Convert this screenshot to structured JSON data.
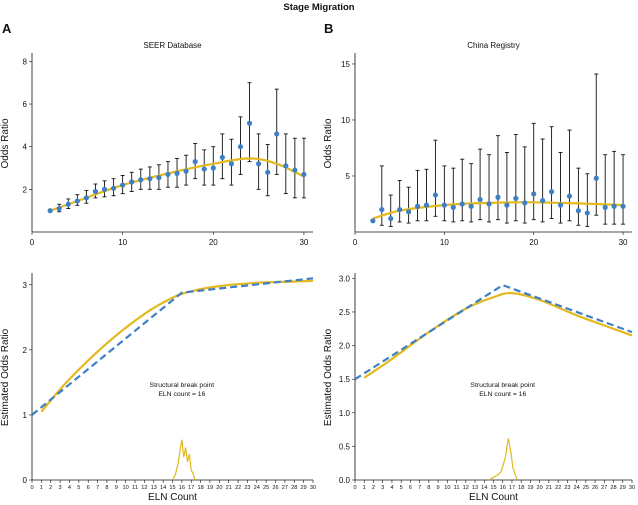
{
  "figure": {
    "title": "Stage Migration",
    "panel_a_letter": "A",
    "panel_b_letter": "B",
    "annotation_line1": "Structural break point",
    "annotation_line2": "ELN count = 16"
  },
  "colors": {
    "points": "#3f7fc6",
    "errorbars": "#111111",
    "smooth": "#e2b91f",
    "fit": "#3f7fc6",
    "observed": "#e2b91f"
  },
  "chart_data": [
    {
      "id": "a-top",
      "type": "scatter",
      "title": "SEER Database",
      "ylabel": "Odds Ratio",
      "xlim": [
        0,
        31
      ],
      "ylim": [
        0,
        8.3
      ],
      "xticks": [
        0,
        10,
        20,
        30
      ],
      "yticks": [
        2,
        4,
        6,
        8
      ],
      "points": [
        {
          "x": 2,
          "y": 1.0,
          "lo": 0.95,
          "hi": 1.05
        },
        {
          "x": 3,
          "y": 1.1,
          "lo": 0.95,
          "hi": 1.3
        },
        {
          "x": 4,
          "y": 1.3,
          "lo": 1.1,
          "hi": 1.55
        },
        {
          "x": 5,
          "y": 1.45,
          "lo": 1.25,
          "hi": 1.75
        },
        {
          "x": 6,
          "y": 1.6,
          "lo": 1.35,
          "hi": 1.95
        },
        {
          "x": 7,
          "y": 1.9,
          "lo": 1.6,
          "hi": 2.25
        },
        {
          "x": 8,
          "y": 2.0,
          "lo": 1.65,
          "hi": 2.4
        },
        {
          "x": 9,
          "y": 2.05,
          "lo": 1.7,
          "hi": 2.5
        },
        {
          "x": 10,
          "y": 2.2,
          "lo": 1.8,
          "hi": 2.65
        },
        {
          "x": 11,
          "y": 2.35,
          "lo": 1.9,
          "hi": 2.8
        },
        {
          "x": 12,
          "y": 2.45,
          "lo": 2.0,
          "hi": 2.95
        },
        {
          "x": 13,
          "y": 2.5,
          "lo": 2.0,
          "hi": 3.05
        },
        {
          "x": 14,
          "y": 2.55,
          "lo": 2.0,
          "hi": 3.15
        },
        {
          "x": 15,
          "y": 2.7,
          "lo": 2.1,
          "hi": 3.3
        },
        {
          "x": 16,
          "y": 2.75,
          "lo": 2.1,
          "hi": 3.45
        },
        {
          "x": 17,
          "y": 2.85,
          "lo": 2.2,
          "hi": 3.6
        },
        {
          "x": 18,
          "y": 3.3,
          "lo": 2.5,
          "hi": 4.15
        },
        {
          "x": 19,
          "y": 2.95,
          "lo": 2.2,
          "hi": 3.85
        },
        {
          "x": 20,
          "y": 3.0,
          "lo": 2.2,
          "hi": 4.0
        },
        {
          "x": 21,
          "y": 3.5,
          "lo": 2.5,
          "hi": 4.6
        },
        {
          "x": 22,
          "y": 3.2,
          "lo": 2.2,
          "hi": 4.35
        },
        {
          "x": 23,
          "y": 4.0,
          "lo": 2.7,
          "hi": 5.4
        },
        {
          "x": 24,
          "y": 5.1,
          "lo": 3.3,
          "hi": 7.0
        },
        {
          "x": 25,
          "y": 3.2,
          "lo": 2.0,
          "hi": 4.6
        },
        {
          "x": 26,
          "y": 2.8,
          "lo": 1.7,
          "hi": 4.1
        },
        {
          "x": 27,
          "y": 4.6,
          "lo": 2.7,
          "hi": 6.7
        },
        {
          "x": 28,
          "y": 3.1,
          "lo": 1.8,
          "hi": 4.6
        },
        {
          "x": 29,
          "y": 2.9,
          "lo": 1.6,
          "hi": 4.4
        },
        {
          "x": 30,
          "y": 2.7,
          "lo": 1.6,
          "hi": 4.4
        }
      ],
      "smooth": {
        "x": [
          2,
          5,
          10,
          15,
          20,
          24,
          27,
          30
        ],
        "y": [
          1.0,
          1.45,
          2.2,
          2.75,
          3.2,
          3.45,
          3.2,
          2.6
        ]
      }
    },
    {
      "id": "b-top",
      "type": "scatter",
      "title": "China Registry",
      "ylabel": "Odds Ratio",
      "xlim": [
        0,
        31
      ],
      "ylim": [
        0,
        15.8
      ],
      "xticks": [
        0,
        10,
        20,
        30
      ],
      "yticks": [
        5,
        10,
        15
      ],
      "points": [
        {
          "x": 2,
          "y": 1.0,
          "lo": 0.9,
          "hi": 1.1
        },
        {
          "x": 3,
          "y": 2.0,
          "lo": 0.6,
          "hi": 5.9
        },
        {
          "x": 4,
          "y": 1.2,
          "lo": 0.5,
          "hi": 3.3
        },
        {
          "x": 5,
          "y": 2.0,
          "lo": 0.9,
          "hi": 4.6
        },
        {
          "x": 6,
          "y": 1.8,
          "lo": 0.8,
          "hi": 4.0
        },
        {
          "x": 7,
          "y": 2.3,
          "lo": 1.0,
          "hi": 5.5
        },
        {
          "x": 8,
          "y": 2.4,
          "lo": 1.0,
          "hi": 5.6
        },
        {
          "x": 9,
          "y": 3.3,
          "lo": 1.4,
          "hi": 8.2
        },
        {
          "x": 10,
          "y": 2.4,
          "lo": 1.0,
          "hi": 5.9
        },
        {
          "x": 11,
          "y": 2.2,
          "lo": 0.9,
          "hi": 5.7
        },
        {
          "x": 12,
          "y": 2.5,
          "lo": 1.0,
          "hi": 6.5
        },
        {
          "x": 13,
          "y": 2.3,
          "lo": 0.9,
          "hi": 6.1
        },
        {
          "x": 14,
          "y": 2.9,
          "lo": 1.1,
          "hi": 7.4
        },
        {
          "x": 15,
          "y": 2.5,
          "lo": 0.9,
          "hi": 6.9
        },
        {
          "x": 16,
          "y": 3.1,
          "lo": 1.1,
          "hi": 8.6
        },
        {
          "x": 17,
          "y": 2.4,
          "lo": 0.8,
          "hi": 7.1
        },
        {
          "x": 18,
          "y": 3.0,
          "lo": 1.0,
          "hi": 8.7
        },
        {
          "x": 19,
          "y": 2.6,
          "lo": 0.8,
          "hi": 7.6
        },
        {
          "x": 20,
          "y": 3.4,
          "lo": 1.1,
          "hi": 9.7
        },
        {
          "x": 21,
          "y": 2.8,
          "lo": 0.9,
          "hi": 8.3
        },
        {
          "x": 22,
          "y": 3.6,
          "lo": 1.2,
          "hi": 9.4
        },
        {
          "x": 23,
          "y": 2.4,
          "lo": 0.8,
          "hi": 7.1
        },
        {
          "x": 24,
          "y": 3.2,
          "lo": 1.0,
          "hi": 9.1
        },
        {
          "x": 25,
          "y": 1.9,
          "lo": 0.6,
          "hi": 5.7
        },
        {
          "x": 26,
          "y": 1.7,
          "lo": 0.5,
          "hi": 5.2
        },
        {
          "x": 27,
          "y": 4.8,
          "lo": 1.5,
          "hi": 14.1
        },
        {
          "x": 28,
          "y": 2.2,
          "lo": 0.7,
          "hi": 6.9
        },
        {
          "x": 29,
          "y": 2.3,
          "lo": 0.7,
          "hi": 7.2
        },
        {
          "x": 30,
          "y": 2.3,
          "lo": 0.7,
          "hi": 6.9
        }
      ],
      "smooth": {
        "x": [
          2,
          5,
          10,
          15,
          20,
          25,
          30
        ],
        "y": [
          1.2,
          1.9,
          2.4,
          2.6,
          2.65,
          2.55,
          2.4
        ]
      }
    },
    {
      "id": "a-bottom",
      "type": "line",
      "xlabel": "ELN Count",
      "ylabel": "Estimated Odds Ratio",
      "xlim": [
        0,
        30
      ],
      "ylim": [
        0,
        3.15
      ],
      "xticks": [
        0,
        1,
        2,
        3,
        4,
        5,
        6,
        7,
        8,
        9,
        10,
        11,
        12,
        13,
        14,
        15,
        16,
        17,
        18,
        19,
        20,
        21,
        22,
        23,
        24,
        25,
        26,
        27,
        28,
        29,
        30
      ],
      "yticks": [
        0,
        1,
        2,
        3
      ],
      "fit": {
        "x": [
          0,
          16,
          30
        ],
        "y": [
          1.0,
          2.88,
          3.1
        ]
      },
      "observed": {
        "x": [
          1,
          4,
          8,
          12,
          15,
          17,
          20,
          24,
          28,
          30
        ],
        "y": [
          1.05,
          1.55,
          2.1,
          2.55,
          2.8,
          2.9,
          2.98,
          3.03,
          3.05,
          3.06
        ]
      },
      "breakpoint_density": {
        "x": [
          15.0,
          15.3,
          15.6,
          15.8,
          16.0,
          16.2,
          16.4,
          16.6,
          16.8,
          17.0,
          17.2,
          17.4
        ],
        "y": [
          0.0,
          0.08,
          0.25,
          0.45,
          0.62,
          0.35,
          0.5,
          0.28,
          0.4,
          0.15,
          0.1,
          0.0
        ]
      }
    },
    {
      "id": "b-bottom",
      "type": "line",
      "xlabel": "ELN Count",
      "ylabel": "Estimated Odds Ratio",
      "xlim": [
        0,
        30
      ],
      "ylim": [
        0,
        3.05
      ],
      "xticks": [
        0,
        1,
        2,
        3,
        4,
        5,
        6,
        7,
        8,
        9,
        10,
        11,
        12,
        13,
        14,
        15,
        16,
        17,
        18,
        19,
        20,
        21,
        22,
        23,
        24,
        25,
        26,
        27,
        28,
        29,
        30
      ],
      "yticks": [
        0,
        0.5,
        1.0,
        1.5,
        2.0,
        2.5,
        3.0
      ],
      "fit": {
        "x": [
          0,
          16,
          30
        ],
        "y": [
          1.5,
          2.9,
          2.2
        ]
      },
      "observed": {
        "x": [
          1,
          4,
          8,
          12,
          15,
          17,
          20,
          24,
          28,
          30
        ],
        "y": [
          1.52,
          1.8,
          2.2,
          2.55,
          2.72,
          2.78,
          2.68,
          2.45,
          2.25,
          2.15
        ]
      },
      "breakpoint_density": {
        "x": [
          14.5,
          15.0,
          15.5,
          15.8,
          16.0,
          16.3,
          16.6,
          16.9,
          17.1,
          17.4,
          17.6
        ],
        "y": [
          0.0,
          0.04,
          0.08,
          0.12,
          0.2,
          0.35,
          0.62,
          0.4,
          0.18,
          0.06,
          0.0
        ]
      }
    }
  ]
}
